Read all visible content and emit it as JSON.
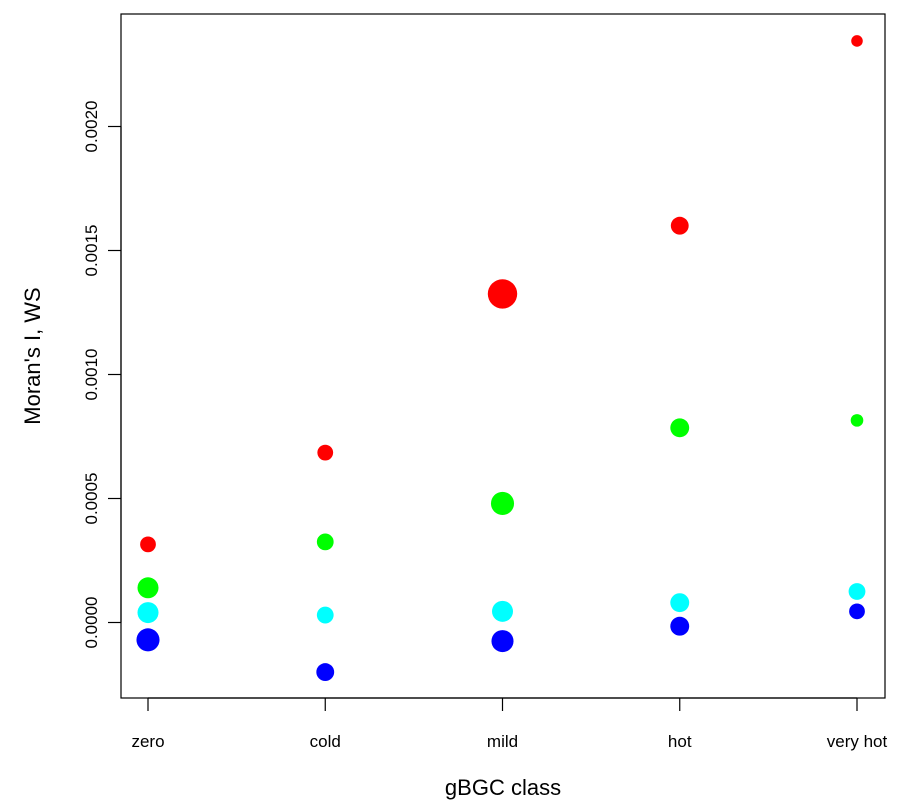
{
  "chart_data": {
    "type": "scatter",
    "title": "",
    "xlabel": "gBGC class",
    "ylabel": "Moran's I, WS",
    "categories": [
      "zero",
      "cold",
      "mild",
      "hot",
      "very hot"
    ],
    "yticks": [
      "0.0000",
      "0.0005",
      "0.0010",
      "0.0015",
      "0.0020"
    ],
    "ytick_values": [
      0,
      0.0005,
      0.001,
      0.0015,
      0.002
    ],
    "ylim": [
      -0.00031,
      0.00246
    ],
    "grid": false,
    "legend": "none",
    "series": [
      {
        "color": "#ff0000",
        "values": [
          0.000315,
          0.000685,
          0.001325,
          0.0016,
          0.002345
        ],
        "relative_sizes": [
          0.75,
          0.75,
          1.4,
          0.85,
          0.55
        ]
      },
      {
        "color": "#00ff00",
        "values": [
          0.00014,
          0.000325,
          0.00048,
          0.000785,
          0.000815
        ],
        "relative_sizes": [
          1.0,
          0.8,
          1.1,
          0.9,
          0.6
        ]
      },
      {
        "color": "#00ffff",
        "values": [
          4e-05,
          3e-05,
          4.5e-05,
          8e-05,
          0.000125
        ],
        "relative_sizes": [
          1.0,
          0.8,
          1.0,
          0.9,
          0.8
        ]
      },
      {
        "color": "#0000ff",
        "values": [
          -7e-05,
          -0.0002,
          -7.5e-05,
          -1.5e-05,
          4.5e-05
        ],
        "relative_sizes": [
          1.1,
          0.85,
          1.05,
          0.9,
          0.75
        ]
      }
    ]
  }
}
